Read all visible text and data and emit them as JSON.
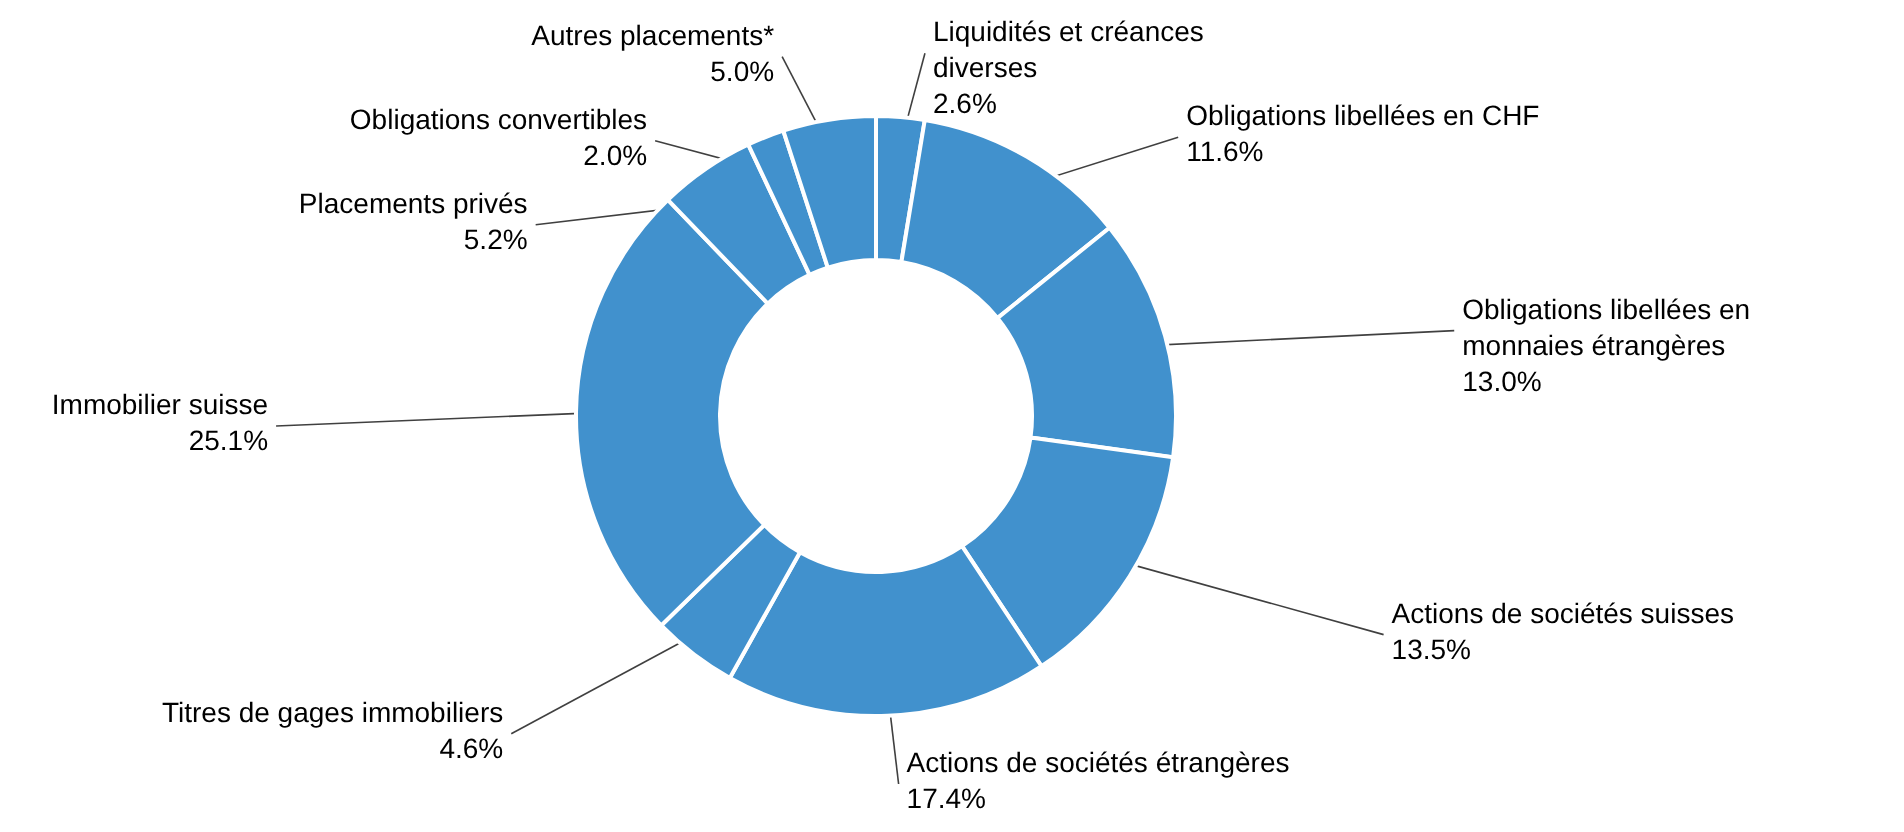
{
  "chart_data": {
    "type": "donut",
    "categories": [
      "Liquidités et créances diverses",
      "Obligations libellées en CHF",
      "Obligations libellées en monnaies étrangères",
      "Actions de sociétés suisses",
      "Actions de sociétés étrangères",
      "Titres de gages immobiliers",
      "Immobilier suisse",
      "Placements privés",
      "Obligations convertibles",
      "Autres placements*"
    ],
    "values": [
      2.6,
      11.6,
      13.0,
      13.5,
      17.4,
      4.6,
      25.1,
      5.2,
      2.0,
      5.0
    ],
    "value_labels": [
      "2.6%",
      "11.6%",
      "13.0%",
      "13.5%",
      "17.4%",
      "4.6%",
      "25.1%",
      "5.2%",
      "2.0%",
      "5.0%"
    ],
    "colors": [
      "#4191cd",
      "#4191cd",
      "#4191cd",
      "#4191cd",
      "#4191cd",
      "#4191cd",
      "#4191cd",
      "#4191cd",
      "#4191cd",
      "#4191cd"
    ],
    "data_labels": false
  }
}
